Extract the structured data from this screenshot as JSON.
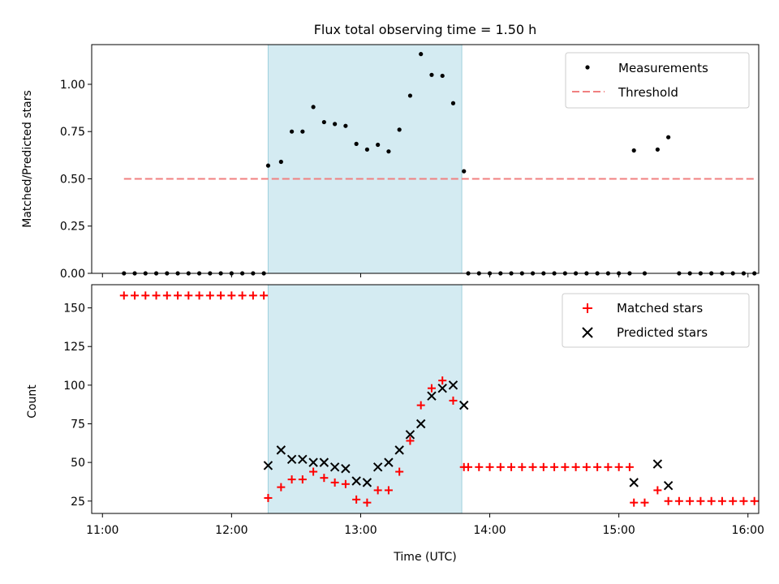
{
  "chart_data": [
    {
      "type": "scatter",
      "title": "Flux total observing time = 1.50 h",
      "ylabel": "Matched/Predicted stars",
      "ylim": [
        0,
        1.21
      ],
      "yticks": [
        0,
        0.25,
        0.5,
        0.75,
        1.0
      ],
      "ytick_labels": [
        "0.00",
        "0.25",
        "0.50",
        "0.75",
        "1.00"
      ],
      "xlim": [
        "11:00",
        "16:00"
      ],
      "x_range_min": [
        655,
        965
      ],
      "highlight_span_min": [
        737,
        827
      ],
      "legend_position": "upper right",
      "series": [
        {
          "name": "Measurements",
          "kind": "dot",
          "color": "#000000",
          "points": [
            [
              670,
              0
            ],
            [
              675,
              0
            ],
            [
              680,
              0
            ],
            [
              685,
              0
            ],
            [
              690,
              0
            ],
            [
              695,
              0
            ],
            [
              700,
              0
            ],
            [
              705,
              0
            ],
            [
              710,
              0
            ],
            [
              715,
              0
            ],
            [
              720,
              0
            ],
            [
              725,
              0
            ],
            [
              730,
              0
            ],
            [
              735,
              0
            ],
            [
              737,
              0.57
            ],
            [
              743,
              0.59
            ],
            [
              748,
              0.75
            ],
            [
              753,
              0.75
            ],
            [
              758,
              0.88
            ],
            [
              763,
              0.8
            ],
            [
              768,
              0.79
            ],
            [
              773,
              0.78
            ],
            [
              778,
              0.685
            ],
            [
              783,
              0.655
            ],
            [
              788,
              0.68
            ],
            [
              793,
              0.645
            ],
            [
              798,
              0.76
            ],
            [
              803,
              0.94
            ],
            [
              808,
              1.16
            ],
            [
              813,
              1.05
            ],
            [
              818,
              1.045
            ],
            [
              823,
              0.9
            ],
            [
              828,
              0.54
            ],
            [
              830,
              0
            ],
            [
              835,
              0
            ],
            [
              840,
              0
            ],
            [
              845,
              0
            ],
            [
              850,
              0
            ],
            [
              855,
              0
            ],
            [
              860,
              0
            ],
            [
              865,
              0
            ],
            [
              870,
              0
            ],
            [
              875,
              0
            ],
            [
              880,
              0
            ],
            [
              885,
              0
            ],
            [
              890,
              0
            ],
            [
              895,
              0
            ],
            [
              900,
              0
            ],
            [
              905,
              0
            ],
            [
              907,
              0.65
            ],
            [
              912,
              0
            ],
            [
              918,
              0.655
            ],
            [
              923,
              0.72
            ],
            [
              928,
              0
            ],
            [
              933,
              0
            ],
            [
              938,
              0
            ],
            [
              943,
              0
            ],
            [
              948,
              0
            ],
            [
              953,
              0
            ],
            [
              958,
              0
            ],
            [
              963,
              0
            ]
          ]
        },
        {
          "name": "Threshold",
          "kind": "dashed-line",
          "color": "#f08080",
          "x": [
            670,
            963
          ],
          "y": [
            0.5,
            0.5
          ]
        }
      ]
    },
    {
      "type": "scatter",
      "xlabel": "Time (UTC)",
      "ylabel": "Count",
      "ylim": [
        17,
        165
      ],
      "yticks": [
        25,
        50,
        75,
        100,
        125,
        150
      ],
      "ytick_labels": [
        "25",
        "50",
        "75",
        "100",
        "125",
        "150"
      ],
      "xlim": [
        "11:00",
        "16:00"
      ],
      "x_range_min": [
        655,
        965
      ],
      "xticks_min": [
        660,
        720,
        780,
        840,
        900,
        960
      ],
      "xtick_labels": [
        "11:00",
        "12:00",
        "13:00",
        "14:00",
        "15:00",
        "16:00"
      ],
      "highlight_span_min": [
        737,
        827
      ],
      "legend_position": "upper right",
      "series": [
        {
          "name": "Matched stars",
          "kind": "plus",
          "color": "#ff0000",
          "points": [
            [
              670,
              158
            ],
            [
              675,
              158
            ],
            [
              680,
              158
            ],
            [
              685,
              158
            ],
            [
              690,
              158
            ],
            [
              695,
              158
            ],
            [
              700,
              158
            ],
            [
              705,
              158
            ],
            [
              710,
              158
            ],
            [
              715,
              158
            ],
            [
              720,
              158
            ],
            [
              725,
              158
            ],
            [
              730,
              158
            ],
            [
              735,
              158
            ],
            [
              737,
              27
            ],
            [
              743,
              34
            ],
            [
              748,
              39
            ],
            [
              753,
              39
            ],
            [
              758,
              44
            ],
            [
              763,
              40
            ],
            [
              768,
              37
            ],
            [
              773,
              36
            ],
            [
              778,
              26
            ],
            [
              783,
              24
            ],
            [
              788,
              32
            ],
            [
              793,
              32
            ],
            [
              798,
              44
            ],
            [
              803,
              64
            ],
            [
              808,
              87
            ],
            [
              813,
              98
            ],
            [
              818,
              103
            ],
            [
              823,
              90
            ],
            [
              828,
              47
            ],
            [
              830,
              47
            ],
            [
              835,
              47
            ],
            [
              840,
              47
            ],
            [
              845,
              47
            ],
            [
              850,
              47
            ],
            [
              855,
              47
            ],
            [
              860,
              47
            ],
            [
              865,
              47
            ],
            [
              870,
              47
            ],
            [
              875,
              47
            ],
            [
              880,
              47
            ],
            [
              885,
              47
            ],
            [
              890,
              47
            ],
            [
              895,
              47
            ],
            [
              900,
              47
            ],
            [
              905,
              47
            ],
            [
              907,
              24
            ],
            [
              912,
              24
            ],
            [
              918,
              32
            ],
            [
              923,
              25
            ],
            [
              928,
              25
            ],
            [
              933,
              25
            ],
            [
              938,
              25
            ],
            [
              943,
              25
            ],
            [
              948,
              25
            ],
            [
              953,
              25
            ],
            [
              958,
              25
            ],
            [
              963,
              25
            ]
          ]
        },
        {
          "name": "Predicted stars",
          "kind": "x",
          "color": "#000000",
          "points": [
            [
              737,
              48
            ],
            [
              743,
              58
            ],
            [
              748,
              52
            ],
            [
              753,
              52
            ],
            [
              758,
              50
            ],
            [
              763,
              50
            ],
            [
              768,
              47
            ],
            [
              773,
              46
            ],
            [
              778,
              38
            ],
            [
              783,
              37
            ],
            [
              788,
              47
            ],
            [
              793,
              50
            ],
            [
              798,
              58
            ],
            [
              803,
              68
            ],
            [
              808,
              75
            ],
            [
              813,
              93
            ],
            [
              818,
              98
            ],
            [
              823,
              100
            ],
            [
              828,
              87
            ],
            [
              907,
              37
            ],
            [
              918,
              49
            ],
            [
              923,
              35
            ]
          ]
        }
      ]
    }
  ]
}
